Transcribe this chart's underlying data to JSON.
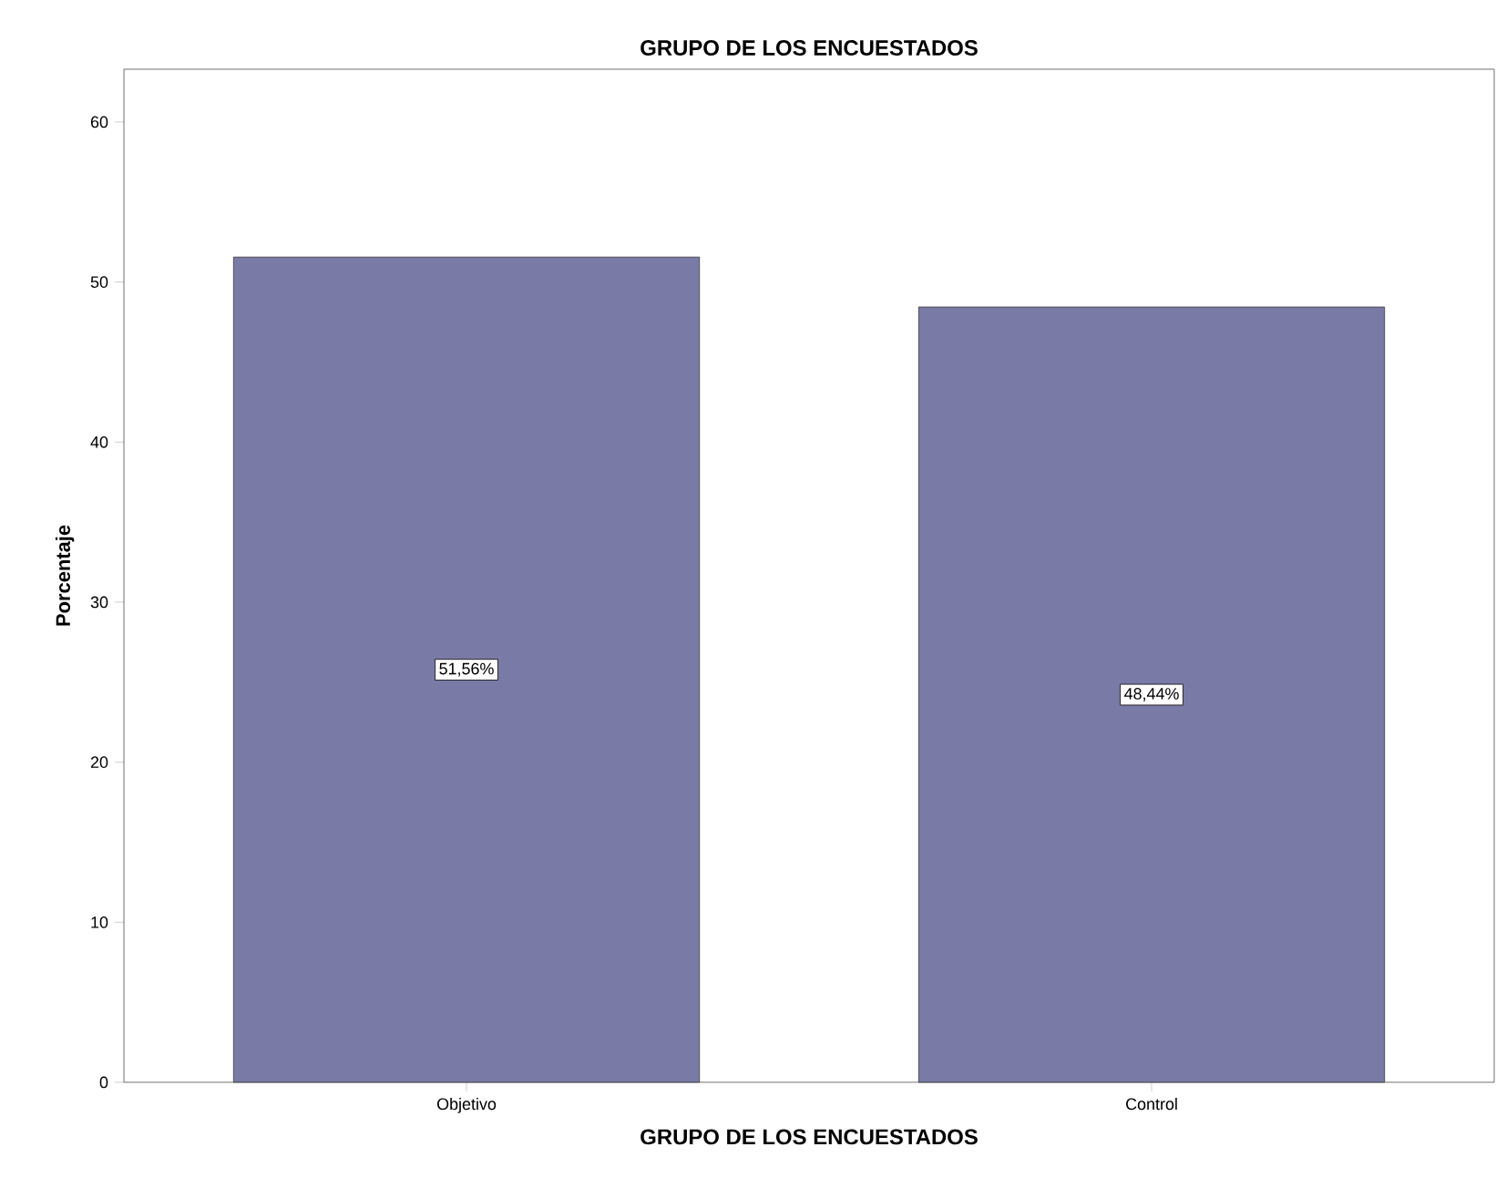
{
  "chart_data": {
    "type": "bar",
    "title": "GRUPO DE LOS ENCUESTADOS",
    "xlabel": "GRUPO DE LOS ENCUESTADOS",
    "ylabel": "Porcentaje",
    "categories": [
      "Objetivo",
      "Control"
    ],
    "values": [
      51.56,
      48.44
    ],
    "value_labels": [
      "51,56%",
      "48,44%"
    ],
    "color": "#7a7aa6",
    "ylim": [
      0,
      63.3
    ],
    "yticks": [
      0,
      10,
      20,
      30,
      40,
      50,
      60
    ]
  }
}
